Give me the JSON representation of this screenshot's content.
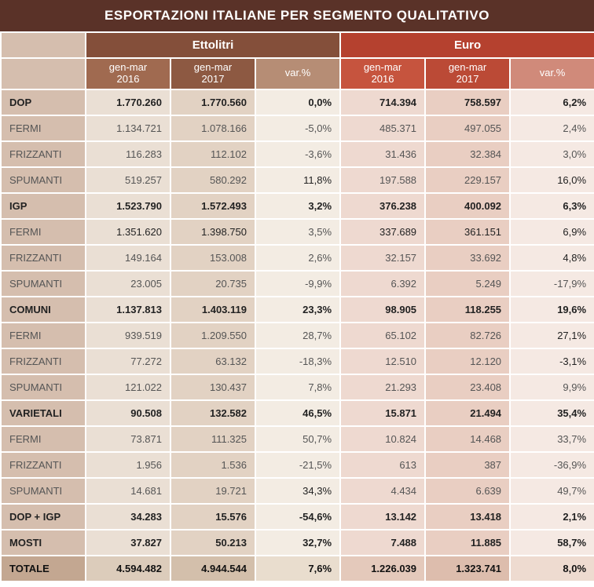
{
  "title": "ESPORTAZIONI ITALIANE PER SEGMENTO QUALITATIVO",
  "groupHeaders": {
    "ettolitri": "Ettolitri",
    "euro": "Euro"
  },
  "subHeaders": {
    "g2016": "gen-mar\n2016",
    "g2017": "gen-mar\n2017",
    "var": "var.%"
  },
  "colors": {
    "titleBg": "#5a3228",
    "ettGroup": "#844f3a",
    "eurGroup": "#b5412f",
    "labelCol": "#d5beae"
  },
  "rows": [
    {
      "label": "DOP",
      "bold": true,
      "e16": "1.770.260",
      "e17": "1.770.560",
      "ev": "0,0%",
      "u16": "714.394",
      "u17": "758.597",
      "uv": "6,2%",
      "boldCols": []
    },
    {
      "label": "FERMI",
      "bold": false,
      "e16": "1.134.721",
      "e17": "1.078.166",
      "ev": "-5,0%",
      "u16": "485.371",
      "u17": "497.055",
      "uv": "2,4%",
      "boldCols": []
    },
    {
      "label": "FRIZZANTI",
      "bold": false,
      "e16": "116.283",
      "e17": "112.102",
      "ev": "-3,6%",
      "u16": "31.436",
      "u17": "32.384",
      "uv": "3,0%",
      "boldCols": []
    },
    {
      "label": "SPUMANTI",
      "bold": false,
      "e16": "519.257",
      "e17": "580.292",
      "ev": "11,8%",
      "u16": "197.588",
      "u17": "229.157",
      "uv": "16,0%",
      "boldCols": [
        "ev",
        "uv"
      ]
    },
    {
      "label": "IGP",
      "bold": true,
      "e16": "1.523.790",
      "e17": "1.572.493",
      "ev": "3,2%",
      "u16": "376.238",
      "u17": "400.092",
      "uv": "6,3%",
      "boldCols": []
    },
    {
      "label": "FERMI",
      "bold": false,
      "e16": "1.351.620",
      "e17": "1.398.750",
      "ev": "3,5%",
      "u16": "337.689",
      "u17": "361.151",
      "uv": "6,9%",
      "boldCols": [
        "e16",
        "e17",
        "u16",
        "u17",
        "uv"
      ]
    },
    {
      "label": "FRIZZANTI",
      "bold": false,
      "e16": "149.164",
      "e17": "153.008",
      "ev": "2,6%",
      "u16": "32.157",
      "u17": "33.692",
      "uv": "4,8%",
      "boldCols": [
        "uv"
      ]
    },
    {
      "label": "SPUMANTI",
      "bold": false,
      "e16": "23.005",
      "e17": "20.735",
      "ev": "-9,9%",
      "u16": "6.392",
      "u17": "5.249",
      "uv": "-17,9%",
      "boldCols": []
    },
    {
      "label": "COMUNI",
      "bold": true,
      "e16": "1.137.813",
      "e17": "1.403.119",
      "ev": "23,3%",
      "u16": "98.905",
      "u17": "118.255",
      "uv": "19,6%",
      "boldCols": []
    },
    {
      "label": "FERMI",
      "bold": false,
      "e16": "939.519",
      "e17": "1.209.550",
      "ev": "28,7%",
      "u16": "65.102",
      "u17": "82.726",
      "uv": "27,1%",
      "boldCols": [
        "uv"
      ]
    },
    {
      "label": "FRIZZANTI",
      "bold": false,
      "e16": "77.272",
      "e17": "63.132",
      "ev": "-18,3%",
      "u16": "12.510",
      "u17": "12.120",
      "uv": "-3,1%",
      "boldCols": [
        "uv"
      ]
    },
    {
      "label": "SPUMANTI",
      "bold": false,
      "e16": "121.022",
      "e17": "130.437",
      "ev": "7,8%",
      "u16": "21.293",
      "u17": "23.408",
      "uv": "9,9%",
      "boldCols": []
    },
    {
      "label": "VARIETALI",
      "bold": true,
      "e16": "90.508",
      "e17": "132.582",
      "ev": "46,5%",
      "u16": "15.871",
      "u17": "21.494",
      "uv": "35,4%",
      "boldCols": []
    },
    {
      "label": "FERMI",
      "bold": false,
      "e16": "73.871",
      "e17": "111.325",
      "ev": "50,7%",
      "u16": "10.824",
      "u17": "14.468",
      "uv": "33,7%",
      "boldCols": []
    },
    {
      "label": "FRIZZANTI",
      "bold": false,
      "e16": "1.956",
      "e17": "1.536",
      "ev": "-21,5%",
      "u16": "613",
      "u17": "387",
      "uv": "-36,9%",
      "boldCols": []
    },
    {
      "label": "SPUMANTI",
      "bold": false,
      "e16": "14.681",
      "e17": "19.721",
      "ev": "34,3%",
      "u16": "4.434",
      "u17": "6.639",
      "uv": "49,7%",
      "boldCols": [
        "ev"
      ]
    },
    {
      "label": "DOP + IGP",
      "bold": true,
      "e16": "34.283",
      "e17": "15.576",
      "ev": "-54,6%",
      "u16": "13.142",
      "u17": "13.418",
      "uv": "2,1%",
      "boldCols": []
    },
    {
      "label": "MOSTI",
      "bold": true,
      "e16": "37.827",
      "e17": "50.213",
      "ev": "32,7%",
      "u16": "7.488",
      "u17": "11.885",
      "uv": "58,7%",
      "boldCols": []
    }
  ],
  "total": {
    "label": "TOTALE",
    "e16": "4.594.482",
    "e17": "4.944.544",
    "ev": "7,6%",
    "u16": "1.226.039",
    "u17": "1.323.741",
    "uv": "8,0%"
  }
}
